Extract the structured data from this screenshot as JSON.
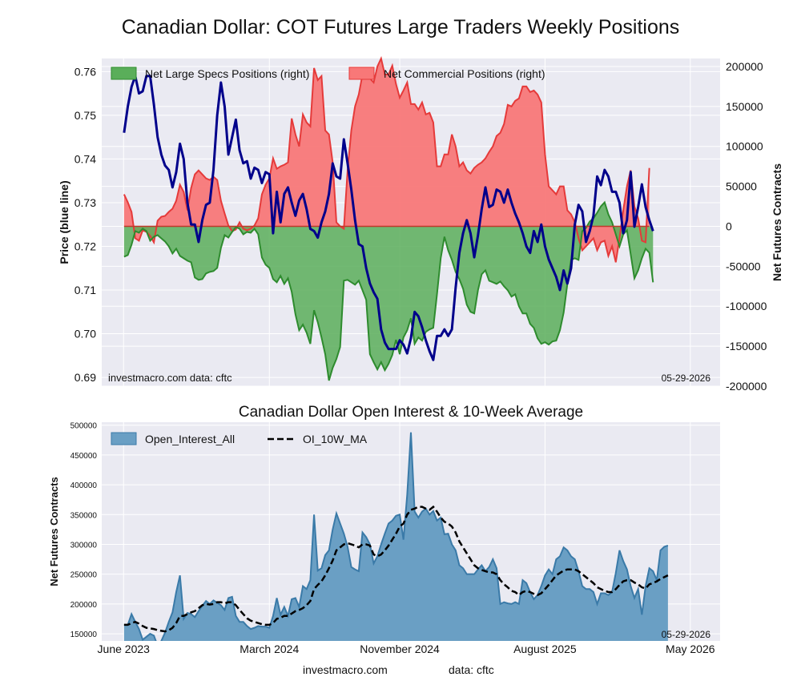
{
  "title": "Canadian Dollar: COT Futures Large Traders Weekly Positions",
  "footer": {
    "left": "investmacro.com",
    "right": "data: cftc"
  },
  "colors": {
    "plot_bg": "#eaeaf2",
    "grid": "#ffffff",
    "price_line": "#00008b",
    "specs_fill": "#5aae5a",
    "specs_line": "#2e8b2e",
    "comm_fill": "#f87878",
    "comm_line": "#e53a3a",
    "oi_fill": "#6a9fc4",
    "oi_line": "#3a7aa8",
    "ma_line": "#000000"
  },
  "chart_data": [
    {
      "type": "line",
      "title": "Canadian Dollar: COT Futures Large Traders Weekly Positions",
      "ylabel": "Price (blue line)",
      "y2label": "Net Futures Contracts",
      "ylim": [
        0.688,
        0.763
      ],
      "y2lim": [
        -200000,
        210000
      ],
      "yticks": [
        "0.76",
        "0.75",
        "0.74",
        "0.73",
        "0.72",
        "0.71",
        "0.70",
        "0.69"
      ],
      "y2ticks": [
        "200000",
        "150000",
        "100000",
        "50000",
        "0",
        "-50000",
        "-100000",
        "-150000",
        "-200000"
      ],
      "legend": [
        "Net Large Specs Positions (right)",
        "Net Commercial Positions (right)"
      ],
      "legend_position": "top-left",
      "grid": true,
      "note_left": "investmacro.com    data: cftc",
      "note_right": "05-29-2026",
      "x_start": "2023-06-02",
      "x_interval_days": 7,
      "x_range": [
        "2023-04-21",
        "2026-06-26"
      ],
      "price": [
        0.746,
        0.752,
        0.7565,
        0.759,
        0.755,
        0.7555,
        0.759,
        0.759,
        0.7525,
        0.745,
        0.741,
        0.7385,
        0.7375,
        0.7335,
        0.737,
        0.7435,
        0.74,
        0.73,
        0.725,
        0.725,
        0.721,
        0.726,
        0.7295,
        0.73,
        0.7375,
        0.75,
        0.7575,
        0.752,
        0.741,
        0.745,
        0.749,
        0.742,
        0.739,
        0.7395,
        0.7355,
        0.738,
        0.7375,
        0.7345,
        0.737,
        0.7365,
        0.723,
        0.7325,
        0.7255,
        0.732,
        0.7335,
        0.73,
        0.727,
        0.7305,
        0.732,
        0.7285,
        0.724,
        0.7235,
        0.722,
        0.7255,
        0.728,
        0.732,
        0.739,
        0.736,
        0.7355,
        0.7445,
        0.739,
        0.733,
        0.726,
        0.7205,
        0.72,
        0.715,
        0.7115,
        0.7095,
        0.708,
        0.701,
        0.698,
        0.6965,
        0.6965,
        0.6965,
        0.6985,
        0.6975,
        0.6955,
        0.699,
        0.705,
        0.704,
        0.7015,
        0.6985,
        0.696,
        0.694,
        0.6995,
        0.6995,
        0.701,
        0.6995,
        0.701,
        0.7105,
        0.7185,
        0.723,
        0.726,
        0.723,
        0.7175,
        0.7225,
        0.7285,
        0.7335,
        0.729,
        0.7295,
        0.733,
        0.7325,
        0.73,
        0.733,
        0.73,
        0.7275,
        0.7255,
        0.723,
        0.72,
        0.7185,
        0.7235,
        0.721,
        0.725,
        0.72,
        0.717,
        0.715,
        0.713,
        0.71,
        0.7145,
        0.7115,
        0.715,
        0.725,
        0.7295,
        0.728,
        0.721,
        0.7235,
        0.727,
        0.736,
        0.734,
        0.7375,
        0.736,
        0.7325,
        0.7325,
        0.73,
        0.723,
        0.726,
        0.737,
        0.7245,
        0.729,
        0.7342,
        0.729,
        0.726,
        0.7235
      ],
      "specs": [
        -38000,
        -36000,
        -23000,
        -6000,
        -8000,
        -3000,
        -6000,
        -18000,
        -13000,
        -11000,
        -15000,
        -19000,
        -25000,
        -34000,
        -28000,
        -37000,
        -40000,
        -43000,
        -45000,
        -64000,
        -67000,
        -66000,
        -59000,
        -57000,
        -56000,
        -52000,
        -27000,
        -11000,
        -14000,
        -7000,
        -1000,
        -3000,
        -10000,
        -7000,
        -8000,
        -3000,
        -10000,
        -39000,
        -48000,
        -52000,
        -66000,
        -70000,
        -62000,
        -72000,
        -65000,
        -82000,
        -110000,
        -130000,
        -123000,
        -133000,
        -147000,
        -105000,
        -120000,
        -139000,
        -160000,
        -193000,
        -177000,
        -166000,
        -151000,
        -68000,
        -67000,
        -70000,
        -73000,
        -68000,
        -80000,
        -92000,
        -160000,
        -170000,
        -179000,
        -170000,
        -180000,
        -172000,
        -161000,
        -142000,
        -160000,
        -139000,
        -130000,
        -115000,
        -147000,
        -139000,
        -143000,
        -132000,
        -129000,
        -127000,
        -85000,
        -40000,
        -13000,
        -30000,
        -42000,
        -57000,
        -66000,
        -78000,
        -98000,
        -107000,
        -109000,
        -80000,
        -60000,
        -55000,
        -68000,
        -70000,
        -72000,
        -69000,
        -75000,
        -80000,
        -88000,
        -85000,
        -100000,
        -109000,
        -109000,
        -122000,
        -127000,
        -140000,
        -147000,
        -145000,
        -148000,
        -144000,
        -143000,
        -130000,
        -108000,
        -72000,
        -42000,
        -40000,
        -42000,
        -6000,
        -2000,
        6000,
        10000,
        17000,
        25000,
        30000,
        15000,
        5000,
        -10000,
        -25000,
        -10000,
        -5000,
        -35000,
        -65000,
        -55000,
        -40000,
        -28000,
        -33000,
        -70000
      ],
      "comm": [
        40000,
        30000,
        18000,
        -15000,
        -18000,
        -5000,
        -7000,
        -12000,
        -20000,
        7000,
        12000,
        13000,
        18000,
        22000,
        32000,
        52000,
        43000,
        20000,
        48000,
        65000,
        70000,
        65000,
        60000,
        58000,
        62000,
        58000,
        32000,
        16000,
        1000,
        -6000,
        -4000,
        5000,
        -3000,
        -5000,
        -3000,
        1000,
        10000,
        40000,
        52000,
        60000,
        85000,
        72000,
        75000,
        77000,
        80000,
        135000,
        115000,
        100000,
        140000,
        130000,
        125000,
        198000,
        183000,
        188000,
        120000,
        115000,
        80000,
        5000,
        0,
        -3000,
        70000,
        120000,
        150000,
        165000,
        190000,
        190000,
        185000,
        180000,
        200000,
        210000,
        190000,
        190000,
        201000,
        178000,
        161000,
        170000,
        180000,
        153000,
        153000,
        146000,
        155000,
        140000,
        142000,
        130000,
        75000,
        75000,
        90000,
        90000,
        115000,
        100000,
        75000,
        80000,
        70000,
        66000,
        73000,
        77000,
        80000,
        85000,
        93000,
        100000,
        113000,
        117000,
        128000,
        152000,
        150000,
        157000,
        160000,
        175000,
        175000,
        168000,
        170000,
        165000,
        155000,
        90000,
        50000,
        45000,
        40000,
        50000,
        50000,
        20000,
        15000,
        5000,
        -15000,
        -30000,
        -25000,
        -20000,
        -15000,
        -30000,
        -20000,
        -18000,
        -37000,
        -25000,
        -45000,
        -15000,
        20000,
        50000,
        70000,
        25000,
        10000,
        -18000,
        -20000,
        73000
      ],
      "plot_box": [
        127,
        73,
        772,
        409
      ]
    },
    {
      "type": "area",
      "title": "Canadian Dollar Open Interest & 10-Week Average",
      "ylabel": "Net Futures Contracts",
      "ylim": [
        138000,
        505000
      ],
      "yticks": [
        "500000",
        "450000",
        "400000",
        "350000",
        "300000",
        "250000",
        "200000",
        "150000"
      ],
      "xtick_labels": [
        "June 2023",
        "March 2024",
        "November 2024",
        "August 2025",
        "May 2026"
      ],
      "legend": [
        "Open_Interest_All",
        "OI_10W_MA"
      ],
      "legend_position": "top-left",
      "grid": true,
      "note_right": "05-29-2026",
      "x_start": "2023-06-02",
      "x_interval_days": 7,
      "x_range": [
        "2023-04-21",
        "2026-06-26"
      ],
      "open_interest": [
        165000,
        165000,
        183000,
        170000,
        158000,
        140000,
        145000,
        150000,
        147000,
        130000,
        138000,
        152000,
        170000,
        186000,
        220000,
        248000,
        175000,
        185000,
        183000,
        178000,
        188000,
        197000,
        205000,
        200000,
        206000,
        202000,
        198000,
        190000,
        210000,
        212000,
        180000,
        170000,
        170000,
        163000,
        158000,
        160000,
        163000,
        162000,
        162000,
        160000,
        180000,
        210000,
        182000,
        195000,
        180000,
        208000,
        210000,
        195000,
        230000,
        225000,
        240000,
        350000,
        256000,
        260000,
        282000,
        290000,
        325000,
        352000,
        335000,
        318000,
        296000,
        262000,
        258000,
        255000,
        320000,
        312000,
        300000,
        268000,
        280000,
        300000,
        318000,
        335000,
        340000,
        348000,
        350000,
        308000,
        383000,
        488000,
        355000,
        345000,
        355000,
        360000,
        350000,
        356000,
        340000,
        345000,
        317000,
        318000,
        300000,
        290000,
        265000,
        260000,
        250000,
        250000,
        250000,
        258000,
        265000,
        255000,
        262000,
        275000,
        260000,
        200000,
        203000,
        201000,
        200000,
        203000,
        200000,
        240000,
        235000,
        220000,
        208000,
        215000,
        230000,
        248000,
        258000,
        250000,
        275000,
        280000,
        295000,
        290000,
        280000,
        275000,
        255000,
        230000,
        225000,
        225000,
        220000,
        200000,
        218000,
        218000,
        215000,
        220000,
        252000,
        290000,
        272000,
        258000,
        230000,
        210000,
        225000,
        182000,
        230000,
        260000,
        255000,
        240000,
        290000,
        296000,
        298000
      ],
      "oi_10w_ma": [
        165000,
        165000,
        168000,
        170000,
        167000,
        163000,
        160000,
        159000,
        158000,
        156000,
        155000,
        154000,
        156000,
        160000,
        168000,
        180000,
        180000,
        183000,
        186000,
        188000,
        193000,
        198000,
        200000,
        199000,
        200000,
        203000,
        203000,
        201000,
        203000,
        203000,
        198000,
        190000,
        183000,
        176000,
        172000,
        170000,
        168000,
        166000,
        165000,
        165000,
        168000,
        175000,
        177000,
        180000,
        180000,
        184000,
        188000,
        190000,
        193000,
        198000,
        205000,
        225000,
        232000,
        238000,
        248000,
        260000,
        273000,
        290000,
        295000,
        300000,
        302000,
        300000,
        298000,
        295000,
        300000,
        300000,
        298000,
        283000,
        280000,
        283000,
        290000,
        298000,
        308000,
        318000,
        330000,
        335000,
        350000,
        358000,
        360000,
        363000,
        363000,
        360000,
        358000,
        363000,
        355000,
        345000,
        338000,
        335000,
        330000,
        320000,
        305000,
        295000,
        285000,
        275000,
        265000,
        260000,
        257000,
        255000,
        253000,
        253000,
        250000,
        240000,
        233000,
        228000,
        222000,
        220000,
        215000,
        220000,
        222000,
        220000,
        217000,
        215000,
        218000,
        225000,
        232000,
        240000,
        248000,
        252000,
        256000,
        258000,
        258000,
        258000,
        255000,
        250000,
        245000,
        240000,
        235000,
        228000,
        225000,
        222000,
        220000,
        220000,
        225000,
        232000,
        238000,
        240000,
        240000,
        236000,
        233000,
        228000,
        226000,
        233000,
        235000,
        238000,
        242000,
        245000,
        248000
      ],
      "plot_box": [
        127,
        527,
        772,
        273
      ]
    }
  ],
  "axes_labels": {
    "top_left_ticks": [
      "0.76",
      "0.75",
      "0.74",
      "0.73",
      "0.72",
      "0.71",
      "0.70",
      "0.69"
    ]
  }
}
